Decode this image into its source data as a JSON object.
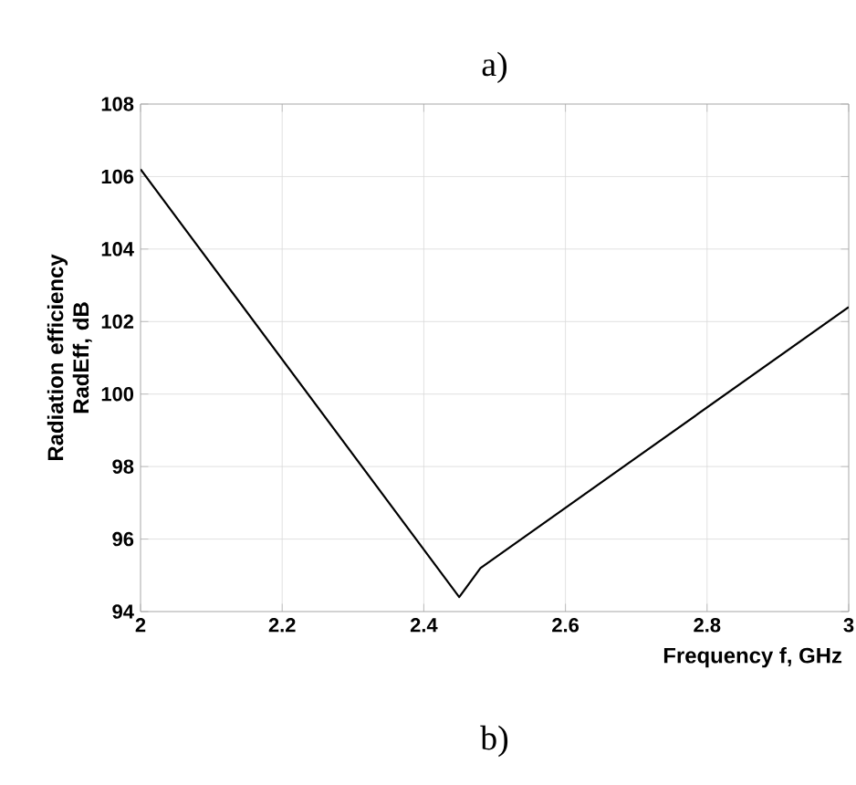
{
  "chart_data": {
    "type": "line",
    "title": "a)",
    "xlabel": "Frequency f, GHz",
    "ylabel": "Radiation efficiency RadEff, dB",
    "annotations": [
      "b)"
    ],
    "x": [
      2,
      2.45,
      2.48,
      3
    ],
    "series": [
      {
        "color": "#000000",
        "values": [
          106.2,
          94.4,
          95.2,
          102.4
        ]
      }
    ],
    "xlim": [
      2,
      3
    ],
    "ylim": [
      94,
      108
    ],
    "xticks": [
      2,
      2.2,
      2.4,
      2.6,
      2.8,
      3
    ],
    "yticks": [
      94,
      96,
      98,
      100,
      102,
      104,
      106,
      108
    ],
    "grid": true,
    "line_style": "solid",
    "marker": "none"
  }
}
